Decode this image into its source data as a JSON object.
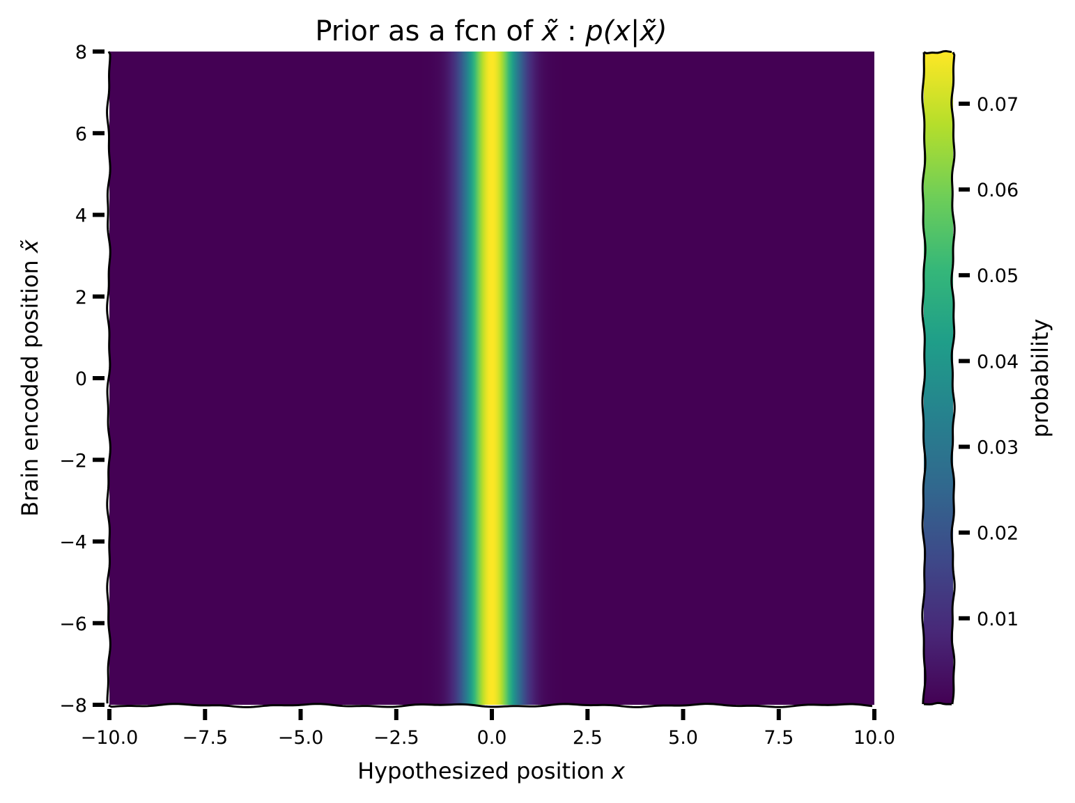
{
  "chart_data": {
    "type": "heatmap",
    "title": {
      "text": "Prior as a fcn of ",
      "math_1": "x̃",
      "sep": " : ",
      "math_2": "p(x|x̃)"
    },
    "xlabel": {
      "text": "Hypothesized position ",
      "math": "x"
    },
    "ylabel": {
      "text": "Brain encoded position ",
      "math": "x̃"
    },
    "xlim": [
      -10.0,
      10.0
    ],
    "ylim": [
      -8.0,
      8.0
    ],
    "x_ticks": [
      -10.0,
      -7.5,
      -5.0,
      -2.5,
      0.0,
      2.5,
      5.0,
      7.5,
      10.0
    ],
    "x_tick_labels": [
      "−10.0",
      "−7.5",
      "−5.0",
      "−2.5",
      "0.0",
      "2.5",
      "5.0",
      "7.5",
      "10.0"
    ],
    "y_ticks": [
      -8,
      -6,
      -4,
      -2,
      0,
      2,
      4,
      6,
      8
    ],
    "y_tick_labels": [
      "−8",
      "−6",
      "−4",
      "−2",
      "0",
      "2",
      "4",
      "6",
      "8"
    ],
    "colormap": "viridis",
    "distribution": {
      "form": "gaussian in x, constant in x̃",
      "mean": 0.0,
      "std": 0.5,
      "peak_value": 0.076
    },
    "colorbar": {
      "label": "probability",
      "range": [
        0.0,
        0.076
      ],
      "ticks": [
        0.01,
        0.02,
        0.03,
        0.04,
        0.05,
        0.06,
        0.07
      ],
      "tick_labels": [
        "0.01",
        "0.02",
        "0.03",
        "0.04",
        "0.05",
        "0.06",
        "0.07"
      ]
    },
    "grid": false,
    "style": "xkcd"
  }
}
